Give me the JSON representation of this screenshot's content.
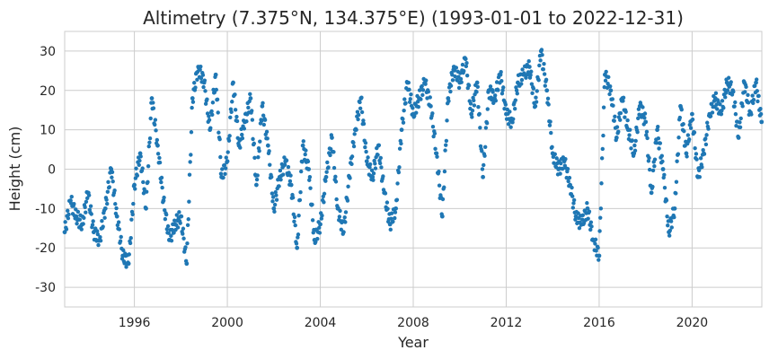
{
  "chart_data": {
    "type": "scatter",
    "title": "Altimetry (7.375°N, 134.375°E) (1993-01-01 to 2022-12-31)",
    "xlabel": "Year",
    "ylabel": "Height (cm)",
    "xlim": [
      1993.0,
      2023.0
    ],
    "ylim": [
      -35,
      35
    ],
    "x_ticks": [
      1996,
      2000,
      2004,
      2008,
      2012,
      2016,
      2020
    ],
    "y_ticks": [
      -30,
      -20,
      -10,
      0,
      10,
      20,
      30
    ],
    "grid": true,
    "legend": "none",
    "colors": {
      "marker": "#1f77b4",
      "grid": "#cccccc",
      "text": "#262626"
    },
    "series": [
      {
        "color": "#1f77b4",
        "x": [
          1993.0,
          1993.25,
          1993.5,
          1993.75,
          1994.0,
          1994.25,
          1994.5,
          1994.75,
          1995.0,
          1995.25,
          1995.5,
          1995.75,
          1996.0,
          1996.25,
          1996.5,
          1996.75,
          1997.0,
          1997.25,
          1997.5,
          1997.75,
          1998.0,
          1998.25,
          1998.5,
          1998.75,
          1999.0,
          1999.25,
          1999.5,
          1999.75,
          2000.0,
          2000.25,
          2000.5,
          2000.75,
          2001.0,
          2001.25,
          2001.5,
          2001.75,
          2002.0,
          2002.25,
          2002.5,
          2002.75,
          2003.0,
          2003.25,
          2003.5,
          2003.75,
          2004.0,
          2004.25,
          2004.5,
          2004.75,
          2005.0,
          2005.25,
          2005.5,
          2005.75,
          2006.0,
          2006.25,
          2006.5,
          2006.75,
          2007.0,
          2007.25,
          2007.5,
          2007.75,
          2008.0,
          2008.25,
          2008.5,
          2008.75,
          2009.0,
          2009.25,
          2009.5,
          2009.75,
          2010.0,
          2010.25,
          2010.5,
          2010.75,
          2011.0,
          2011.25,
          2011.5,
          2011.75,
          2012.0,
          2012.25,
          2012.5,
          2012.75,
          2013.0,
          2013.25,
          2013.5,
          2013.75,
          2014.0,
          2014.25,
          2014.5,
          2014.75,
          2015.0,
          2015.25,
          2015.5,
          2015.75,
          2016.0,
          2016.25,
          2016.5,
          2016.75,
          2017.0,
          2017.25,
          2017.5,
          2017.75,
          2018.0,
          2018.25,
          2018.5,
          2018.75,
          2019.0,
          2019.25,
          2019.5,
          2019.75,
          2020.0,
          2020.25,
          2020.5,
          2020.75,
          2021.0,
          2021.25,
          2021.5,
          2021.75,
          2022.0,
          2022.25,
          2022.5,
          2022.75,
          2022.99
        ],
        "y": [
          -16,
          -8,
          -12,
          -14,
          -6,
          -16,
          -18,
          -10,
          0,
          -12,
          -22,
          -24,
          -4,
          4,
          -10,
          18,
          6,
          -8,
          -18,
          -14,
          -12,
          -24,
          18,
          26,
          22,
          10,
          24,
          -2,
          2,
          22,
          6,
          12,
          18,
          -4,
          16,
          6,
          -10,
          -2,
          2,
          -4,
          -20,
          6,
          0,
          -18,
          -14,
          -2,
          8,
          -10,
          -16,
          -2,
          10,
          18,
          2,
          -2,
          6,
          -6,
          -14,
          -10,
          10,
          22,
          14,
          18,
          22,
          16,
          4,
          -12,
          18,
          26,
          22,
          28,
          14,
          22,
          -2,
          20,
          18,
          24,
          14,
          12,
          22,
          24,
          26,
          16,
          30,
          20,
          4,
          0,
          2,
          -4,
          -12,
          -14,
          -10,
          -18,
          -22,
          24,
          20,
          8,
          18,
          10,
          4,
          16,
          12,
          -6,
          10,
          0,
          -16,
          -10,
          16,
          4,
          14,
          -2,
          4,
          14,
          18,
          14,
          22,
          20,
          8,
          22,
          14,
          22,
          12
        ]
      }
    ]
  }
}
